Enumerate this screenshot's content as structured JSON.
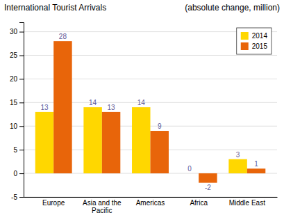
{
  "chart_data": {
    "type": "bar",
    "title": "International Tourist Arrivals",
    "subtitle": "(absolute change, million)",
    "categories": [
      "Europe",
      "Asia and the\nPacific",
      "Americas",
      "Africa",
      "Middle East"
    ],
    "series": [
      {
        "name": "2014",
        "color": "#FFD700",
        "values": [
          13,
          14,
          14,
          0,
          3
        ]
      },
      {
        "name": "2015",
        "color": "#E8650A",
        "values": [
          28,
          13,
          9,
          -2,
          1
        ]
      }
    ],
    "ylim": [
      -5,
      32
    ],
    "yticks": [
      -5,
      0,
      5,
      10,
      15,
      20,
      25,
      30
    ],
    "grid": true,
    "legend": "upper right",
    "data_labels": true
  }
}
